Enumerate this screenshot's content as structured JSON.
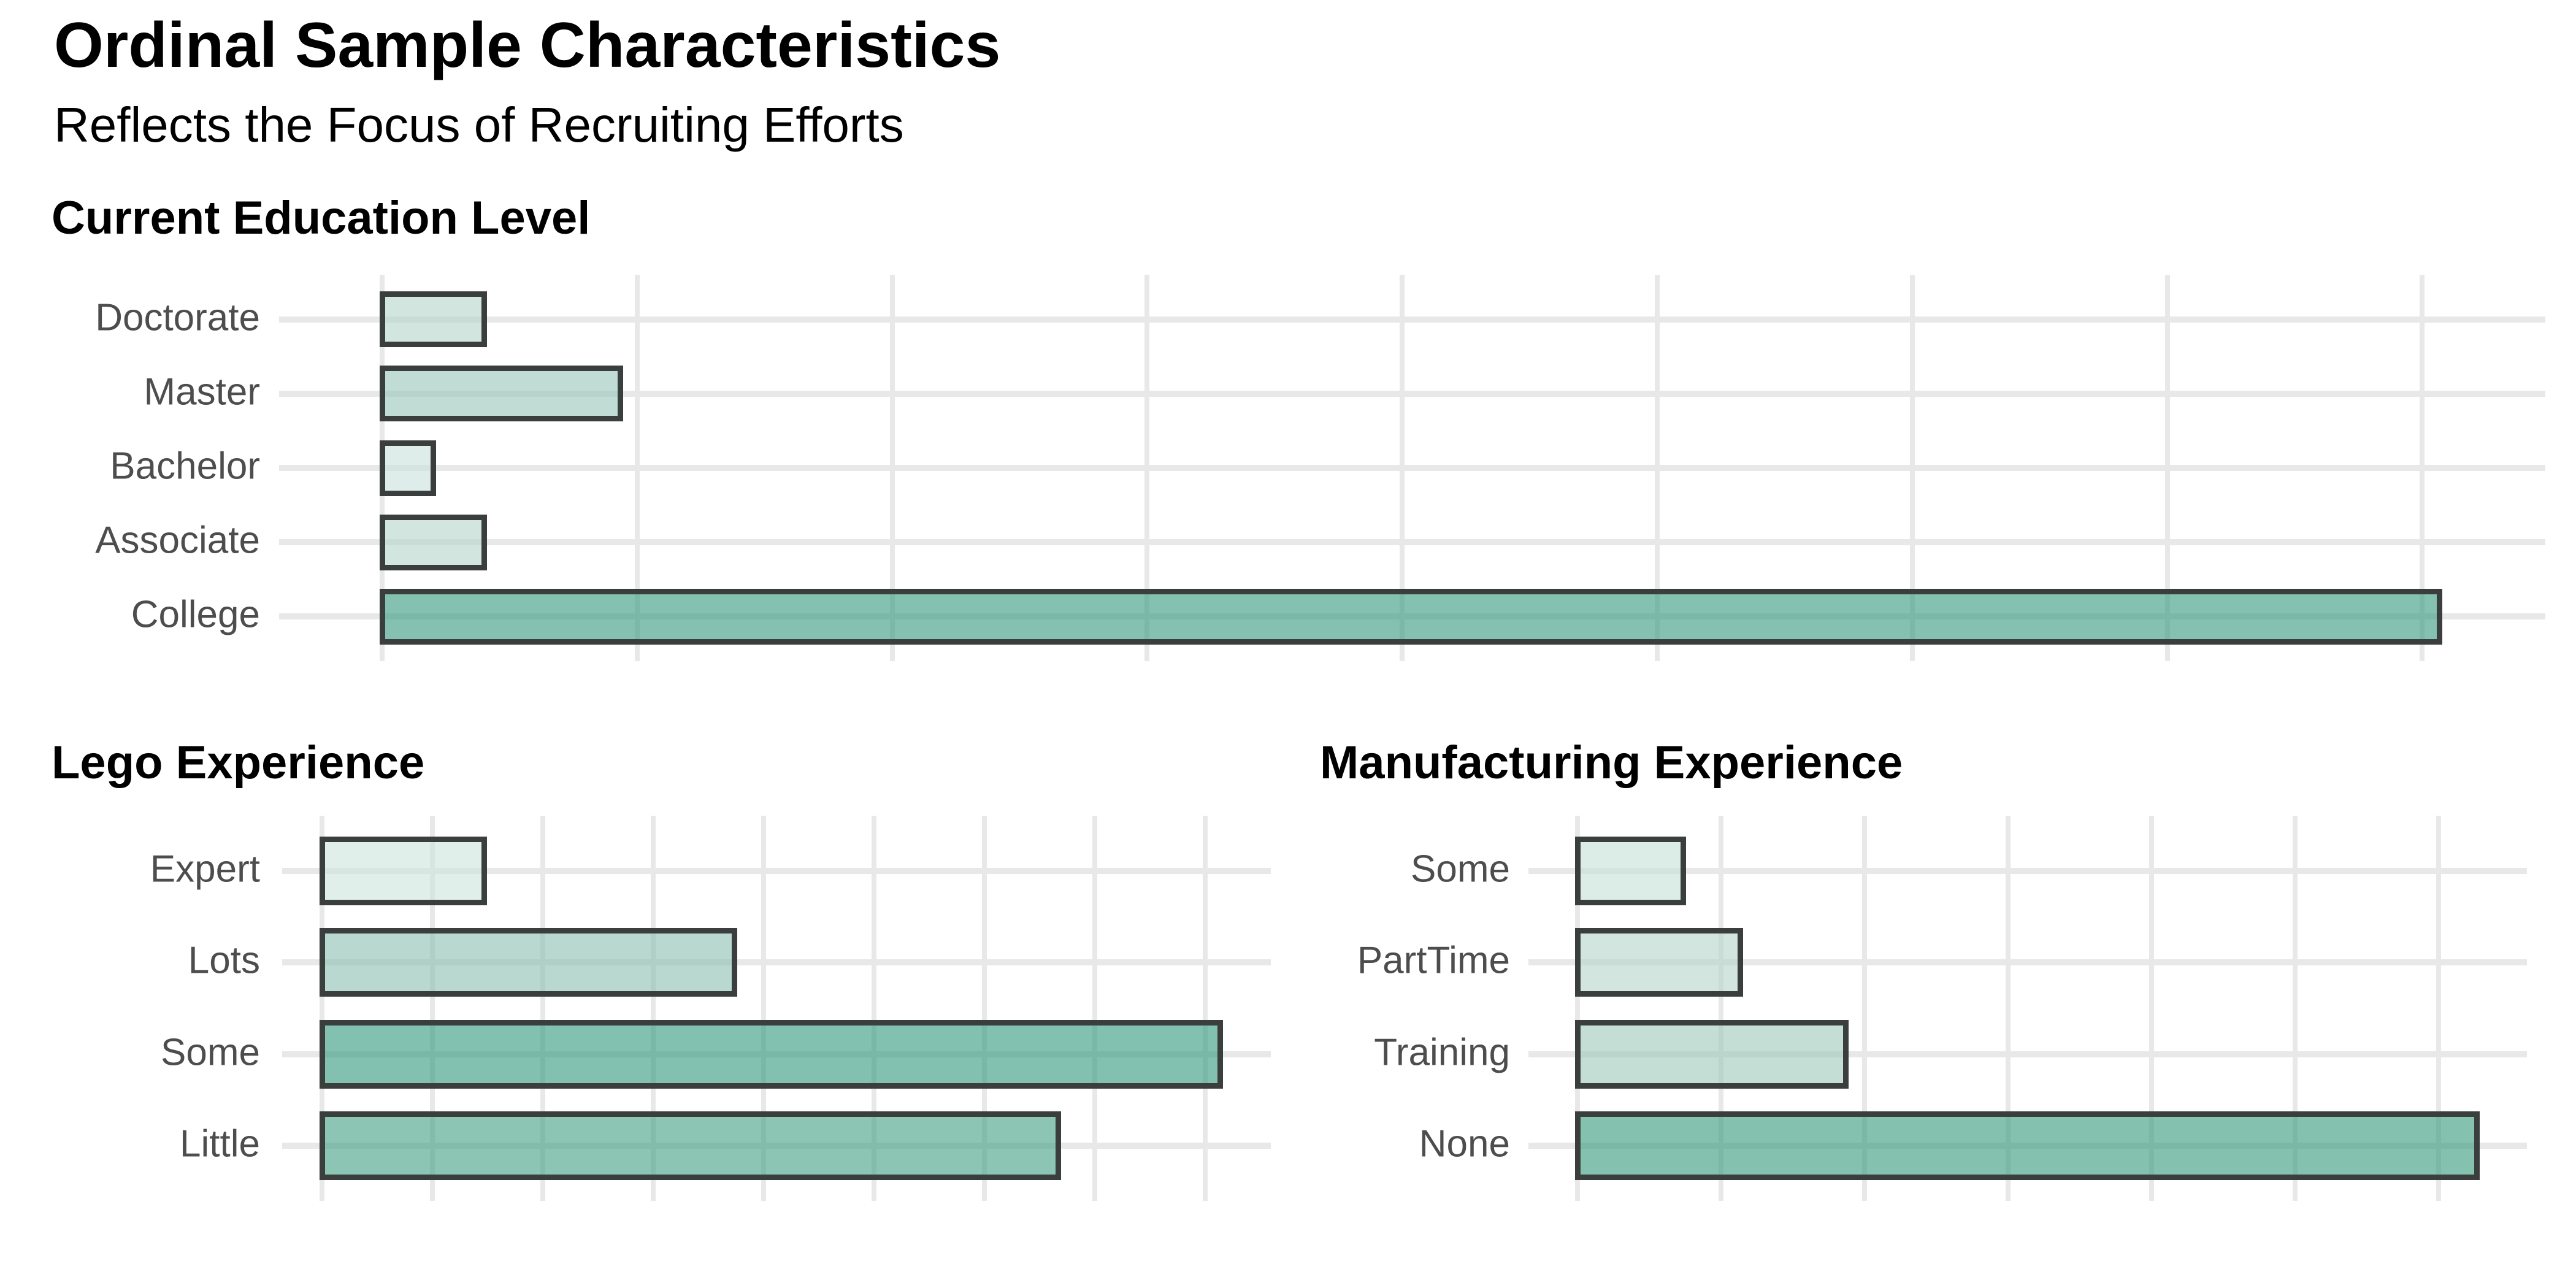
{
  "header": {
    "title": "Ordinal Sample Characteristics",
    "subtitle": "Reflects the Focus of Recruiting Efforts"
  },
  "colors": {
    "background": "#ffffff",
    "bar_border": "#3a3e3d",
    "gridline": "#e8e8e8",
    "axis_label_text": "#4d4d4d",
    "title_text": "#000000"
  },
  "chart_data": [
    {
      "type": "bar",
      "orientation": "horizontal",
      "title": "Current Education Level",
      "categories": [
        "Doctorate",
        "Master",
        "Bachelor",
        "Associate",
        "College"
      ],
      "values": [
        6,
        14,
        3,
        6,
        121
      ],
      "bar_colors": [
        "#d3e5df",
        "#c0dcd4",
        "#deede9",
        "#d3e5df",
        "#85c1b0"
      ],
      "xlim": [
        0,
        121
      ],
      "grid_step": 15,
      "x_tick_labels_shown": false,
      "grid": "on",
      "legend": "none"
    },
    {
      "type": "bar",
      "orientation": "horizontal",
      "title": "Lego Experience",
      "categories": [
        "Expert",
        "Lots",
        "Some",
        "Little"
      ],
      "values": [
        11,
        28,
        61,
        50
      ],
      "bar_colors": [
        "#e1efeb",
        "#b9d8d0",
        "#82c0af",
        "#8cc5b4"
      ],
      "xlim": [
        0,
        61
      ],
      "grid_step": 7.5,
      "x_tick_labels_shown": false,
      "grid": "on",
      "legend": "none"
    },
    {
      "type": "bar",
      "orientation": "horizontal",
      "title": "Manufacturing Experience",
      "categories": [
        "Some",
        "PartTime",
        "Training",
        "None"
      ],
      "values": [
        11,
        17,
        28,
        94
      ],
      "bar_colors": [
        "#dcece7",
        "#d2e5df",
        "#c4ded6",
        "#84c1af"
      ],
      "xlim": [
        0,
        94
      ],
      "grid_step": 15,
      "x_tick_labels_shown": false,
      "grid": "on",
      "legend": "none"
    }
  ]
}
